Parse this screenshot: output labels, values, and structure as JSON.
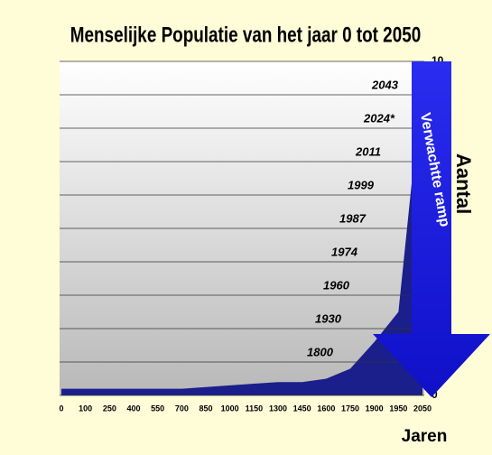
{
  "chart_data": {
    "type": "area",
    "title": "Menselijke Populatie van het jaar 0 tot 2050",
    "x_label": "Jaren",
    "y_label": "Aantal",
    "annotation": "Verwachtte ramp",
    "categories": [
      "0",
      "100",
      "250",
      "400",
      "550",
      "700",
      "850",
      "1000",
      "1150",
      "1300",
      "1450",
      "1600",
      "1750",
      "1900",
      "1950",
      "2050"
    ],
    "values": [
      0.2,
      0.2,
      0.2,
      0.2,
      0.2,
      0.2,
      0.25,
      0.3,
      0.35,
      0.4,
      0.4,
      0.5,
      0.8,
      1.6,
      2.5,
      9.5
    ],
    "color": "#1a1f8c",
    "ylim": [
      0,
      10
    ],
    "yticks": [
      0,
      1,
      2,
      3,
      4,
      5,
      6,
      7,
      8,
      9,
      10
    ],
    "milestones": [
      {
        "value": 1,
        "label": "1800"
      },
      {
        "value": 2,
        "label": "1930"
      },
      {
        "value": 3,
        "label": "1960"
      },
      {
        "value": 4,
        "label": "1974"
      },
      {
        "value": 5,
        "label": "1987"
      },
      {
        "value": 6,
        "label": "1999"
      },
      {
        "value": 7,
        "label": "2011"
      },
      {
        "value": 8,
        "label": "2024*"
      },
      {
        "value": 9,
        "label": "2043"
      }
    ],
    "grid": true
  }
}
